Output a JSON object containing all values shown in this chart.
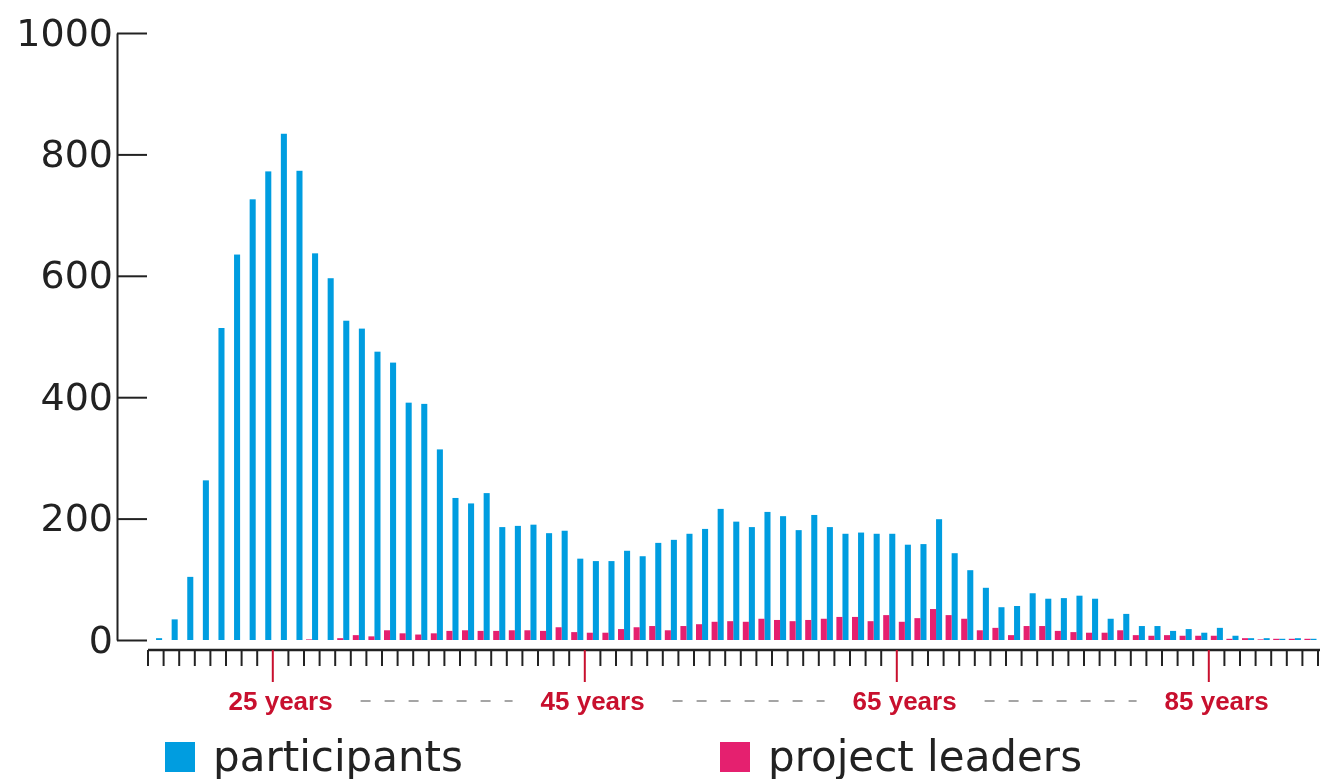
{
  "chart_data": {
    "type": "bar",
    "categories": [
      null,
      null,
      null,
      null,
      null,
      null,
      null,
      null,
      "25 years",
      null,
      null,
      null,
      null,
      null,
      null,
      null,
      null,
      null,
      null,
      null,
      null,
      null,
      null,
      null,
      null,
      null,
      null,
      null,
      "45 years",
      null,
      null,
      null,
      null,
      null,
      null,
      null,
      null,
      null,
      null,
      null,
      null,
      null,
      null,
      null,
      null,
      null,
      null,
      null,
      "65 years",
      null,
      null,
      null,
      null,
      null,
      null,
      null,
      null,
      null,
      null,
      null,
      null,
      null,
      null,
      null,
      null,
      null,
      null,
      null,
      "85 years",
      null,
      null,
      null,
      null,
      null,
      null
    ],
    "series": [
      {
        "name": "participants",
        "color": "#009de0",
        "values": [
          3,
          34,
          104,
          263,
          514,
          635,
          726,
          772,
          834,
          773,
          637,
          596,
          526,
          513,
          475,
          457,
          391,
          389,
          314,
          234,
          225,
          242,
          186,
          188,
          190,
          176,
          180,
          134,
          130,
          130,
          147,
          138,
          160,
          165,
          175,
          183,
          216,
          195,
          186,
          211,
          204,
          181,
          206,
          186,
          175,
          177,
          175,
          175,
          157,
          158,
          199,
          143,
          115,
          86,
          54,
          56,
          77,
          68,
          69,
          73,
          68,
          35,
          43,
          23,
          23,
          15,
          18,
          12,
          20,
          7,
          3,
          3,
          2,
          3,
          2
        ]
      },
      {
        "name": "project leaders",
        "color": "#e5206f",
        "values": [
          0,
          0,
          0,
          0,
          0,
          0,
          0,
          0,
          0,
          0,
          1,
          0,
          3,
          8,
          6,
          16,
          11,
          9,
          11,
          15,
          16,
          15,
          15,
          16,
          16,
          15,
          21,
          13,
          12,
          12,
          18,
          21,
          23,
          16,
          23,
          26,
          30,
          31,
          30,
          35,
          33,
          31,
          33,
          35,
          38,
          38,
          31,
          41,
          30,
          36,
          51,
          41,
          35,
          16,
          20,
          8,
          23,
          23,
          15,
          13,
          12,
          12,
          16,
          8,
          7,
          8,
          7,
          7,
          7,
          2,
          3,
          1,
          2,
          2,
          2
        ]
      }
    ],
    "ylim": [
      0,
      1000
    ],
    "yticks": [
      0,
      200,
      400,
      600,
      800,
      1000
    ],
    "grid": false,
    "legend": "bottom"
  }
}
